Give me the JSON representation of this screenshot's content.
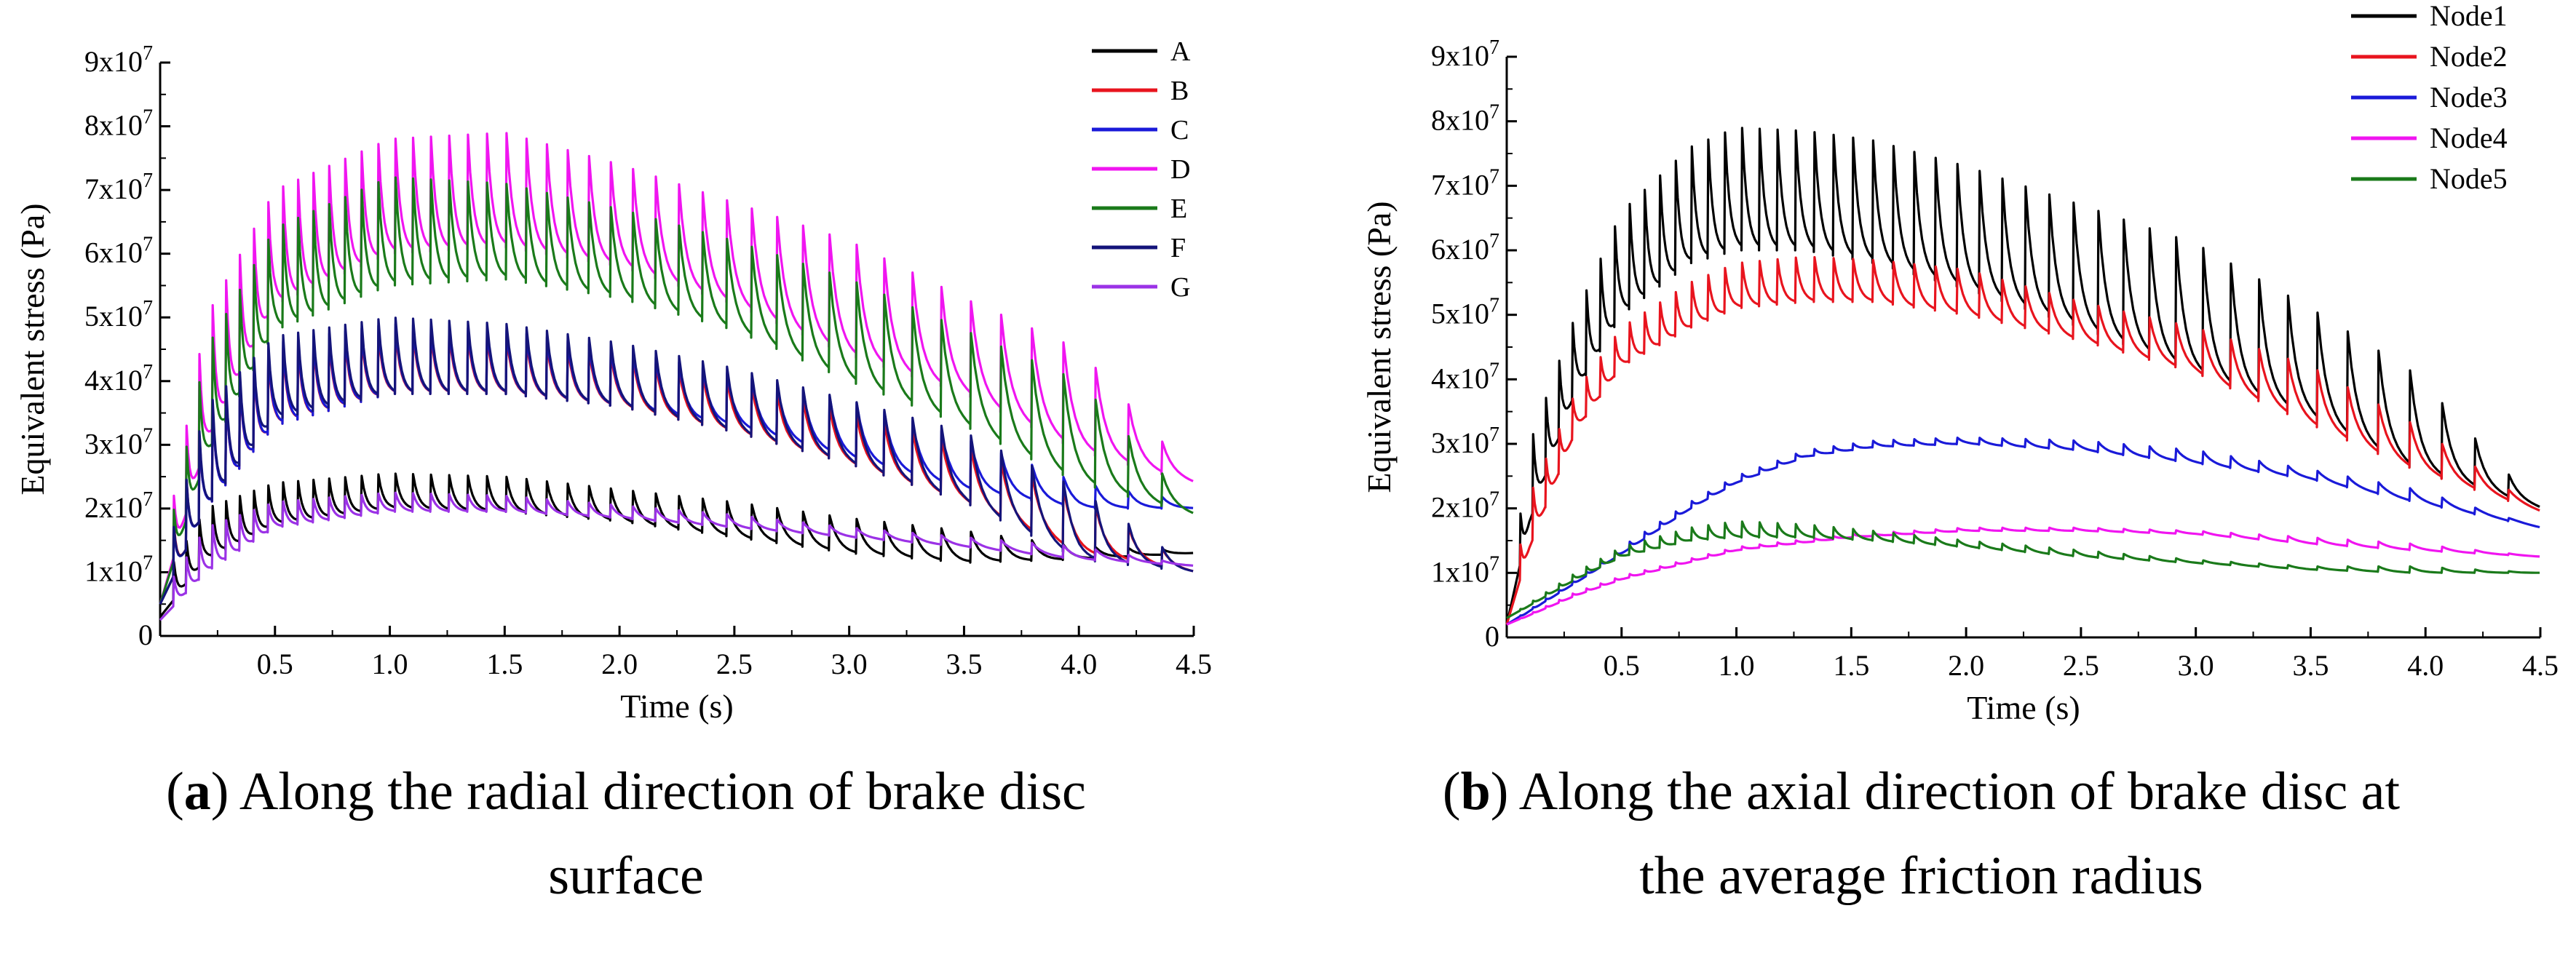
{
  "captions": [
    {
      "letter": "a",
      "line1": "Along the radial direction of brake disc",
      "line2": "surface"
    },
    {
      "letter": "b",
      "line1": "Along the axial direction of brake disc at",
      "line2": "the average friction radius"
    }
  ],
  "chart_data": [
    {
      "type": "line",
      "xlabel": "Time (s)",
      "ylabel": "Equivalent stress (Pa)",
      "xlim": [
        0,
        4.5
      ],
      "ylim": [
        0,
        90000000
      ],
      "xticks": [
        "0.5",
        "1.0",
        "1.5",
        "2.0",
        "2.5",
        "3.0",
        "3.5",
        "4.0",
        "4.5"
      ],
      "yticks": [
        {
          "mantissa": "0",
          "exp": ""
        },
        {
          "mantissa": "1x10",
          "exp": "7"
        },
        {
          "mantissa": "2x10",
          "exp": "7"
        },
        {
          "mantissa": "3x10",
          "exp": "7"
        },
        {
          "mantissa": "4x10",
          "exp": "7"
        },
        {
          "mantissa": "5x10",
          "exp": "7"
        },
        {
          "mantissa": "6x10",
          "exp": "7"
        },
        {
          "mantissa": "7x10",
          "exp": "7"
        },
        {
          "mantissa": "8x10",
          "exp": "7"
        },
        {
          "mantissa": "9x10",
          "exp": "7"
        }
      ],
      "legend_position": "top-right",
      "series": [
        {
          "name": "A",
          "color": "#000000",
          "envelope_t": [
            0,
            0.2,
            0.5,
            1.0,
            1.5,
            2.0,
            2.5,
            3.0,
            3.5,
            4.0,
            4.5
          ],
          "envelope_peak": [
            8000000,
            20000000,
            24000000,
            25500000,
            25000000,
            23000000,
            21000000,
            18500000,
            16500000,
            14000000,
            13500000
          ],
          "envelope_base": [
            3000000,
            12000000,
            17500000,
            20000000,
            19500000,
            18000000,
            15500000,
            13000000,
            11500000,
            12000000,
            13000000
          ]
        },
        {
          "name": "B",
          "color": "#e8141e",
          "envelope_t": [
            0,
            0.2,
            0.5,
            1.0,
            1.5,
            2.0,
            2.5,
            3.0,
            3.5,
            4.0,
            4.5
          ],
          "envelope_peak": [
            10000000,
            35000000,
            45000000,
            48000000,
            47000000,
            44000000,
            40000000,
            35000000,
            30000000,
            22000000,
            10500000
          ],
          "envelope_base": [
            5000000,
            20000000,
            33000000,
            38000000,
            38000000,
            36000000,
            32000000,
            27000000,
            21000000,
            13000000,
            10000000
          ]
        },
        {
          "name": "C",
          "color": "#1a1ad9",
          "envelope_t": [
            0,
            0.2,
            0.5,
            1.0,
            1.5,
            2.0,
            2.5,
            3.0,
            3.5,
            4.0,
            4.5
          ],
          "envelope_peak": [
            9000000,
            35000000,
            46000000,
            49000000,
            48000000,
            45000000,
            41000000,
            37000000,
            31000000,
            24000000,
            21000000
          ],
          "envelope_base": [
            5000000,
            20000000,
            33000000,
            38000000,
            38000000,
            36000000,
            33000000,
            28000000,
            23000000,
            20000000,
            20000000
          ]
        },
        {
          "name": "D",
          "color": "#f015f0",
          "envelope_t": [
            0,
            0.2,
            0.5,
            1.0,
            1.5,
            2.0,
            2.5,
            3.0,
            3.5,
            4.0,
            4.5
          ],
          "envelope_peak": [
            10000000,
            50000000,
            70000000,
            78000000,
            79000000,
            74000000,
            68000000,
            62000000,
            53000000,
            45000000,
            25000000
          ],
          "envelope_base": [
            5000000,
            30000000,
            52000000,
            60000000,
            61000000,
            58000000,
            52000000,
            44000000,
            38000000,
            29000000,
            24000000
          ]
        },
        {
          "name": "E",
          "color": "#1a7a1a",
          "envelope_t": [
            0,
            0.2,
            0.5,
            1.0,
            1.5,
            2.0,
            2.5,
            3.0,
            3.5,
            4.0,
            4.5
          ],
          "envelope_peak": [
            9000000,
            45000000,
            64000000,
            72000000,
            71000000,
            67000000,
            62000000,
            56000000,
            48000000,
            40000000,
            20000000
          ],
          "envelope_base": [
            5000000,
            28000000,
            48000000,
            55000000,
            56000000,
            53000000,
            48000000,
            40000000,
            33000000,
            24000000,
            19000000
          ]
        },
        {
          "name": "F",
          "color": "#14147a",
          "envelope_t": [
            0,
            0.2,
            0.5,
            1.0,
            1.5,
            2.0,
            2.5,
            3.0,
            3.5,
            4.0,
            4.5
          ],
          "envelope_peak": [
            9000000,
            36000000,
            47000000,
            50000000,
            49000000,
            46000000,
            42000000,
            37000000,
            32000000,
            23000000,
            10500000
          ],
          "envelope_base": [
            5000000,
            20000000,
            34000000,
            38000000,
            38000000,
            36000000,
            32000000,
            27000000,
            21000000,
            12000000,
            10000000
          ]
        },
        {
          "name": "G",
          "color": "#9b32e6",
          "envelope_t": [
            0,
            0.2,
            0.5,
            1.0,
            1.5,
            2.0,
            2.5,
            3.0,
            3.5,
            4.0,
            4.5
          ],
          "envelope_peak": [
            6000000,
            17000000,
            21000000,
            22500000,
            22000000,
            20500000,
            19000000,
            17000000,
            15500000,
            14000000,
            11000000
          ],
          "envelope_base": [
            2500000,
            10000000,
            17000000,
            19500000,
            19500000,
            18500000,
            17000000,
            15500000,
            14000000,
            12000000,
            11000000
          ]
        }
      ]
    },
    {
      "type": "line",
      "xlabel": "Time (s)",
      "ylabel": "Equivalent stress (Pa)",
      "xlim": [
        0,
        4.5
      ],
      "ylim": [
        0,
        90000000
      ],
      "xticks": [
        "0.5",
        "1.0",
        "1.5",
        "2.0",
        "2.5",
        "3.0",
        "3.5",
        "4.0",
        "4.5"
      ],
      "yticks": [
        {
          "mantissa": "0",
          "exp": ""
        },
        {
          "mantissa": "1x10",
          "exp": "7"
        },
        {
          "mantissa": "2x10",
          "exp": "7"
        },
        {
          "mantissa": "3x10",
          "exp": "7"
        },
        {
          "mantissa": "4x10",
          "exp": "7"
        },
        {
          "mantissa": "5x10",
          "exp": "7"
        },
        {
          "mantissa": "6x10",
          "exp": "7"
        },
        {
          "mantissa": "7x10",
          "exp": "7"
        },
        {
          "mantissa": "8x10",
          "exp": "7"
        },
        {
          "mantissa": "9x10",
          "exp": "7"
        }
      ],
      "legend_position": "top-right",
      "series": [
        {
          "name": "Node1",
          "color": "#000000",
          "envelope_t": [
            0,
            0.1,
            0.3,
            0.5,
            0.8,
            1.0,
            1.3,
            1.6,
            2.0,
            2.5,
            3.0,
            3.5,
            3.95,
            4.5
          ],
          "envelope_peak": [
            3000000,
            30000000,
            50000000,
            66000000,
            76000000,
            79000000,
            78500000,
            77000000,
            73000000,
            67000000,
            61000000,
            51000000,
            41000000,
            20000000
          ],
          "envelope_base": [
            2000000,
            18000000,
            38000000,
            50000000,
            58000000,
            60000000,
            60000000,
            58000000,
            54000000,
            48000000,
            41000000,
            34000000,
            26000000,
            20000000
          ]
        },
        {
          "name": "Node2",
          "color": "#e8141e",
          "envelope_t": [
            0,
            0.1,
            0.3,
            0.5,
            0.8,
            1.0,
            1.3,
            1.6,
            2.0,
            2.5,
            3.0,
            3.5,
            3.95,
            4.5
          ],
          "envelope_peak": [
            3000000,
            22000000,
            38000000,
            48000000,
            55000000,
            58000000,
            59000000,
            58500000,
            57000000,
            52000000,
            48000000,
            42000000,
            33000000,
            19500000
          ],
          "envelope_base": [
            2000000,
            14000000,
            32000000,
            42000000,
            48000000,
            51000000,
            52000000,
            52000000,
            50000000,
            46000000,
            41000000,
            33000000,
            26000000,
            19500000
          ]
        },
        {
          "name": "Node3",
          "color": "#1a1ad9",
          "envelope_t": [
            0,
            0.3,
            0.5,
            0.8,
            1.0,
            1.3,
            1.6,
            2.0,
            2.5,
            3.0,
            3.5,
            3.95,
            4.5
          ],
          "envelope_peak": [
            2000000,
            9000000,
            14000000,
            21000000,
            25000000,
            29000000,
            30500000,
            31000000,
            30500000,
            29000000,
            26000000,
            23000000,
            17000000
          ],
          "envelope_base": [
            2000000,
            8500000,
            13000000,
            20000000,
            24000000,
            28000000,
            29500000,
            30000000,
            29000000,
            27000000,
            24500000,
            21000000,
            17000000
          ]
        },
        {
          "name": "Node4",
          "color": "#f015f0",
          "envelope_t": [
            0,
            0.3,
            0.5,
            1.0,
            1.5,
            2.0,
            2.5,
            3.0,
            3.5,
            3.95,
            4.5
          ],
          "envelope_peak": [
            2000000,
            7000000,
            9500000,
            14000000,
            16000000,
            17000000,
            17000000,
            16500000,
            15500000,
            14500000,
            12500000
          ],
          "envelope_base": [
            2000000,
            6500000,
            9000000,
            13500000,
            15500000,
            16500000,
            16500000,
            16000000,
            14500000,
            13500000,
            12500000
          ]
        },
        {
          "name": "Node5",
          "color": "#1a7a1a",
          "envelope_t": [
            0,
            0.3,
            0.5,
            0.8,
            1.0,
            1.3,
            1.6,
            2.0,
            2.5,
            3.0,
            3.5,
            3.95,
            4.5
          ],
          "envelope_peak": [
            3000000,
            10000000,
            14000000,
            17000000,
            18000000,
            17500000,
            16500000,
            15000000,
            13500000,
            12000000,
            11000000,
            11000000,
            10000000
          ],
          "envelope_base": [
            3000000,
            9000000,
            12500000,
            15000000,
            15500000,
            15500000,
            15000000,
            14000000,
            12500000,
            11500000,
            10500000,
            10000000,
            10000000
          ]
        }
      ]
    }
  ]
}
